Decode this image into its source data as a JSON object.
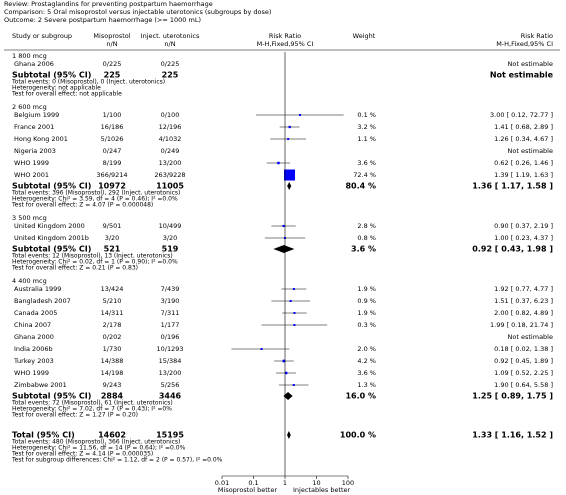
{
  "chart_data": {
    "type": "forest",
    "header": {
      "review": "Review:   Prostaglandins for preventing postpartum haemorrhage",
      "comparison": "Comparison:   5 Oral misoprostol versus injectable uterotonics (subgroups by dose)",
      "outcome": "Outcome:   2 Severe postpartum haemorrhage (>= 1000 mL)"
    },
    "columns": {
      "study": "Study or subgroup",
      "group1": "Misoprostol",
      "group1_unit": "n/N",
      "group2": "Inject. uterotonics",
      "group2_unit": "n/N",
      "plot": "Risk Ratio",
      "plot_method": "M-H,Fixed,95% CI",
      "weight": "Weight",
      "result": "Risk Ratio",
      "result_method": "M-H,Fixed,95% CI"
    },
    "subgroups": [
      {
        "name": "1 800 mcg",
        "studies": [
          {
            "name": "Ghana 2006",
            "group1": "0/225",
            "group2": "0/225",
            "result": "Not estimable"
          }
        ],
        "subtotal": {
          "label": "Subtotal (95% CI)",
          "group1": 225,
          "group2": 225,
          "result": "Not estimable"
        },
        "notes": [
          "Total events: 0 (Misoprostol), 0 (Inject. uterotonics)",
          "Heterogeneity: not applicable",
          "Test for overall effect: not applicable"
        ]
      },
      {
        "name": "2 600 mcg",
        "studies": [
          {
            "name": "Belgium 1999",
            "group1": "1/100",
            "group2": "0/100",
            "weight": {
              "value": 0.1,
              "label": "0.1 %"
            },
            "rr": 3.0,
            "lower": 0.12,
            "upper": 72.77,
            "result": "3.00 [ 0.12, 72.77 ]"
          },
          {
            "name": "France 2001",
            "group1": "16/186",
            "group2": "12/196",
            "weight": {
              "value": 3.2,
              "label": "3.2 %"
            },
            "rr": 1.41,
            "lower": 0.68,
            "upper": 2.89,
            "result": "1.41 [ 0.68, 2.89 ]"
          },
          {
            "name": "Hong Kong 2001",
            "group1": "5/1026",
            "group2": "4/1032",
            "weight": {
              "value": 1.1,
              "label": "1.1 %"
            },
            "rr": 1.26,
            "lower": 0.34,
            "upper": 4.67,
            "result": "1.26 [ 0.34, 4.67 ]"
          },
          {
            "name": "Nigeria 2003",
            "group1": "0/247",
            "group2": "0/249",
            "result": "Not estimable"
          },
          {
            "name": "WHO 1999",
            "group1": "8/199",
            "group2": "13/200",
            "weight": {
              "value": 3.6,
              "label": "3.6 %"
            },
            "rr": 0.62,
            "lower": 0.26,
            "upper": 1.46,
            "result": "0.62 [ 0.26, 1.46 ]"
          },
          {
            "name": "WHO 2001",
            "group1": "366/9214",
            "group2": "263/9228",
            "weight": {
              "value": 72.4,
              "label": "72.4 %"
            },
            "rr": 1.39,
            "lower": 1.19,
            "upper": 1.63,
            "result": "1.39 [ 1.19, 1.63 ]"
          }
        ],
        "subtotal": {
          "label": "Subtotal (95% CI)",
          "group1": 10972,
          "group2": 11005,
          "weight": {
            "value": 80.4,
            "label": "80.4 %"
          },
          "rr": 1.36,
          "lower": 1.17,
          "upper": 1.58,
          "result": "1.36 [ 1.17, 1.58 ]"
        },
        "notes": [
          "Total events: 396 (Misoprostol), 292 (Inject. uterotonics)",
          "Heterogeneity: Chi² = 3.59, df = 4 (P = 0.46); I² =0.0%",
          "Test for overall effect: Z = 4.07 (P = 0.000048)"
        ]
      },
      {
        "name": "3 500 mcg",
        "studies": [
          {
            "name": "United Kingdom 2000",
            "group1": "9/501",
            "group2": "10/499",
            "weight": {
              "value": 2.8,
              "label": "2.8 %"
            },
            "rr": 0.9,
            "lower": 0.37,
            "upper": 2.19,
            "result": "0.90 [ 0.37, 2.19 ]"
          },
          {
            "name": "United Kingdom 2001b",
            "group1": "3/20",
            "group2": "3/20",
            "weight": {
              "value": 0.8,
              "label": "0.8 %"
            },
            "rr": 1.0,
            "lower": 0.23,
            "upper": 4.37,
            "result": "1.00 [ 0.23, 4.37 ]"
          }
        ],
        "subtotal": {
          "label": "Subtotal (95% CI)",
          "group1": 521,
          "group2": 519,
          "weight": {
            "value": 3.6,
            "label": "3.6 %"
          },
          "rr": 0.92,
          "lower": 0.43,
          "upper": 1.98,
          "result": "0.92 [ 0.43, 1.98 ]"
        },
        "notes": [
          "Total events: 12 (Misoprostol), 13 (Inject. uterotonics)",
          "Heterogeneity: Chi² = 0.02, df = 1 (P = 0.90); I² =0.0%",
          "Test for overall effect: Z = 0.21 (P = 0.83)"
        ]
      },
      {
        "name": "4 400 mcg",
        "studies": [
          {
            "name": "Australia 1999",
            "group1": "13/424",
            "group2": "7/439",
            "weight": {
              "value": 1.9,
              "label": "1.9 %"
            },
            "rr": 1.92,
            "lower": 0.77,
            "upper": 4.77,
            "result": "1.92 [ 0.77, 4.77 ]"
          },
          {
            "name": "Bangladesh 2007",
            "group1": "5/210",
            "group2": "3/190",
            "weight": {
              "value": 0.9,
              "label": "0.9 %"
            },
            "rr": 1.51,
            "lower": 0.37,
            "upper": 6.23,
            "result": "1.51 [ 0.37, 6.23 ]"
          },
          {
            "name": "Canada 2005",
            "group1": "14/311",
            "group2": "7/311",
            "weight": {
              "value": 1.9,
              "label": "1.9 %"
            },
            "rr": 2.0,
            "lower": 0.82,
            "upper": 4.89,
            "result": "2.00 [ 0.82, 4.89 ]"
          },
          {
            "name": "China 2007",
            "group1": "2/178",
            "group2": "1/177",
            "weight": {
              "value": 0.3,
              "label": "0.3 %"
            },
            "rr": 1.99,
            "lower": 0.18,
            "upper": 21.74,
            "result": "1.99 [ 0.18, 21.74 ]"
          },
          {
            "name": "Ghana 2000",
            "group1": "0/202",
            "group2": "0/196",
            "result": "Not estimable"
          },
          {
            "name": "India 2006b",
            "group1": "1/730",
            "group2": "10/1293",
            "weight": {
              "value": 2.0,
              "label": "2.0 %"
            },
            "rr": 0.18,
            "lower": 0.02,
            "upper": 1.38,
            "result": "0.18 [ 0.02, 1.38 ]"
          },
          {
            "name": "Turkey 2003",
            "group1": "14/388",
            "group2": "15/384",
            "weight": {
              "value": 4.2,
              "label": "4.2 %"
            },
            "rr": 0.92,
            "lower": 0.45,
            "upper": 1.89,
            "result": "0.92 [ 0.45, 1.89 ]"
          },
          {
            "name": "WHO 1999",
            "group1": "14/198",
            "group2": "13/200",
            "weight": {
              "value": 3.6,
              "label": "3.6 %"
            },
            "rr": 1.09,
            "lower": 0.52,
            "upper": 2.25,
            "result": "1.09 [ 0.52, 2.25 ]"
          },
          {
            "name": "Zimbabwe 2001",
            "group1": "9/243",
            "group2": "5/256",
            "weight": {
              "value": 1.3,
              "label": "1.3 %"
            },
            "rr": 1.9,
            "lower": 0.64,
            "upper": 5.58,
            "result": "1.90 [ 0.64, 5.58 ]"
          }
        ],
        "subtotal": {
          "label": "Subtotal (95% CI)",
          "group1": 2884,
          "group2": 3446,
          "weight": {
            "value": 16.0,
            "label": "16.0 %"
          },
          "rr": 1.25,
          "lower": 0.89,
          "upper": 1.75,
          "result": "1.25 [ 0.89, 1.75 ]"
        },
        "notes": [
          "Total events: 72 (Misoprostol), 61 (Inject. uterotonics)",
          "Heterogeneity: Chi² = 7.02, df = 7 (P = 0.43); I² =0%",
          "Test for overall effect: Z = 1.27 (P = 0.20)"
        ]
      }
    ],
    "total": {
      "label": "Total (95% CI)",
      "group1": 14602,
      "group2": 15195,
      "weight": {
        "value": 100.0,
        "label": "100.0 %"
      },
      "rr": 1.33,
      "lower": 1.16,
      "upper": 1.52,
      "result": "1.33 [ 1.16, 1.52 ]",
      "notes": [
        "Total events: 480 (Misoprostol), 366 (Inject. uterotonics)",
        "Heterogeneity: Chi² = 11.56, df = 14 (P = 0.64); I² =0.0%",
        "Test for overall effect: Z = 4.14 (P = 0.000035)",
        "Test for subgroup differences: Chi² = 1.12, df = 2 (P = 0.57), I² =0.0%"
      ]
    },
    "xscale": "log",
    "xlim": [
      0.01,
      100
    ],
    "xticks": [
      0.01,
      0.1,
      1,
      10,
      100
    ],
    "xlabel_left": "Misoprostol better",
    "xlabel_right": "Injectables better",
    "color": "#0000ff"
  }
}
